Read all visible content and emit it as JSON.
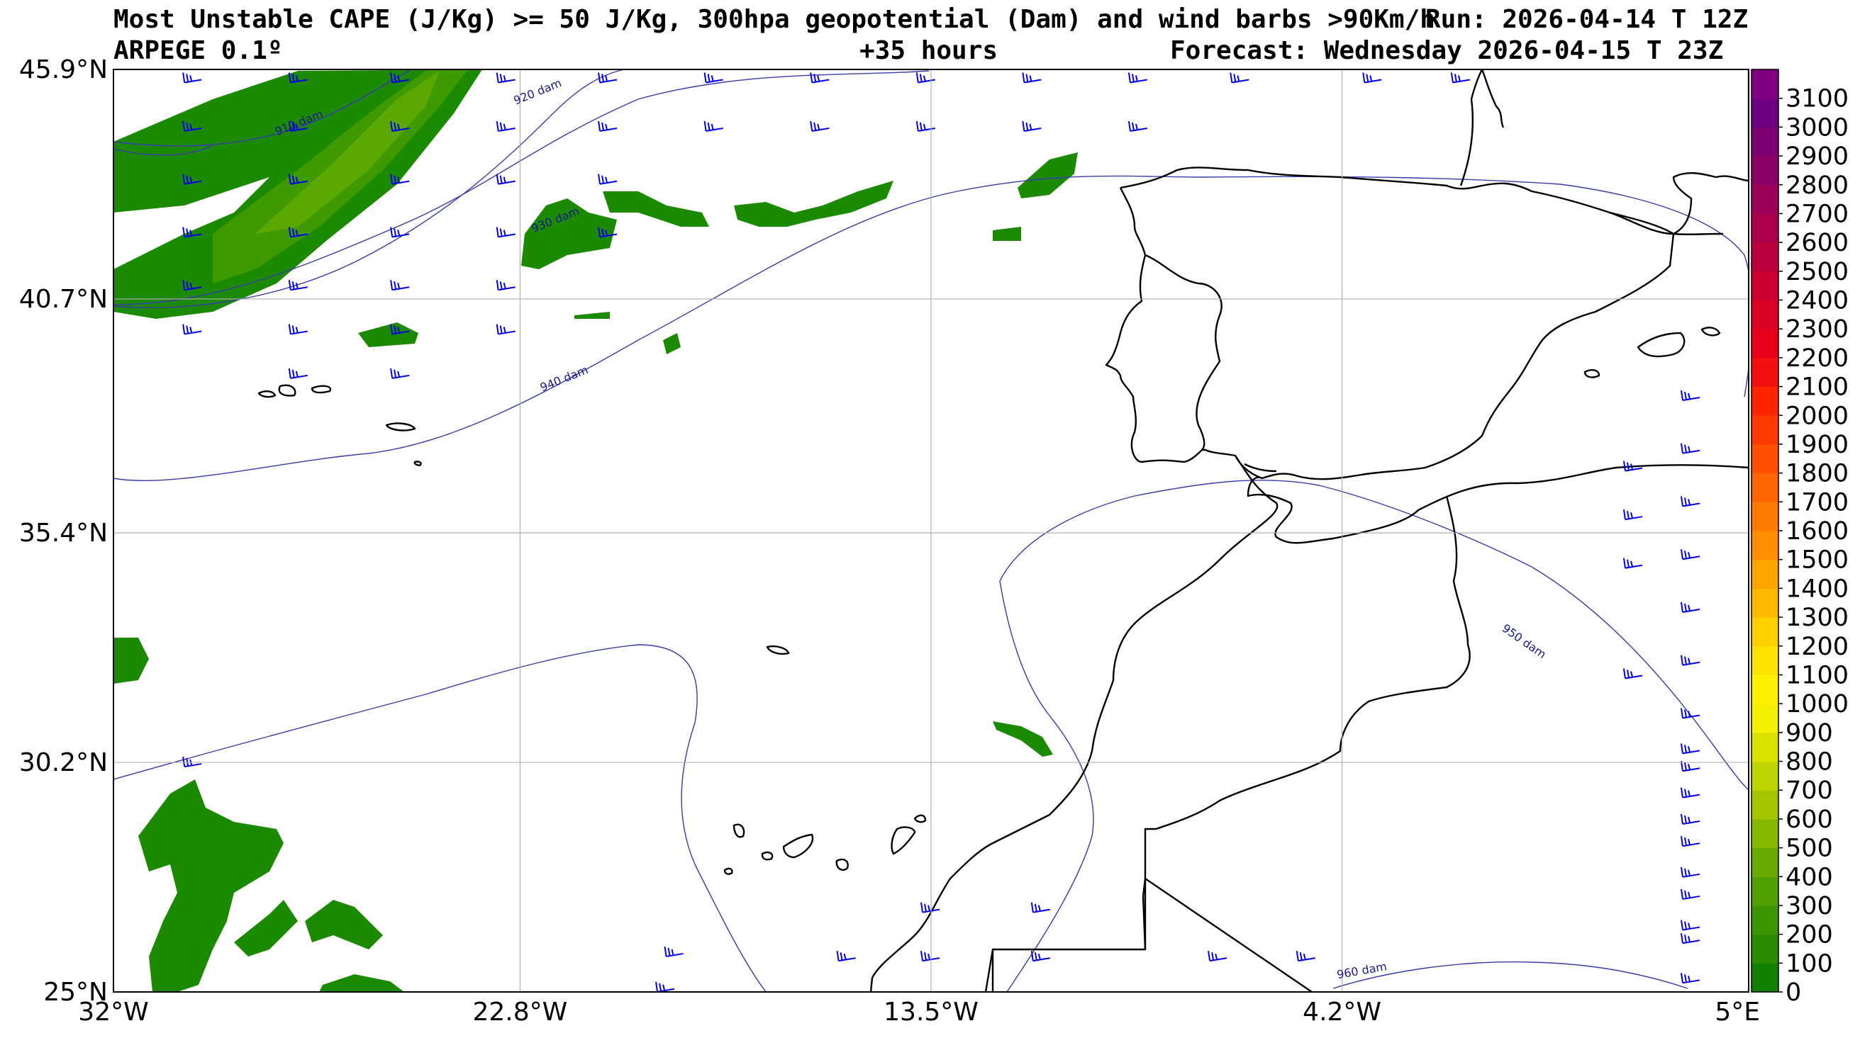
{
  "header": {
    "title_line1": "Most Unstable CAPE (J/Kg) >= 50 J/Kg, 300hpa geopotential (Dam) and wind barbs >90Km/h",
    "run": "Run: 2026-04-14 T 12Z",
    "model": "ARPEGE 0.1º",
    "lead": "+35 hours",
    "forecast": "Forecast: Wednesday 2026-04-15 T 23Z"
  },
  "map": {
    "lat_ticks": [
      {
        "value": 45.9,
        "label": "45.9°N"
      },
      {
        "value": 40.7,
        "label": "40.7°N"
      },
      {
        "value": 35.4,
        "label": "35.4°N"
      },
      {
        "value": 30.2,
        "label": "30.2°N"
      },
      {
        "value": 25.0,
        "label": "25°N"
      }
    ],
    "lon_ticks": [
      {
        "value": -32.0,
        "label": "32°W"
      },
      {
        "value": -22.8,
        "label": "22.8°W"
      },
      {
        "value": -13.5,
        "label": "13.5°W"
      },
      {
        "value": -4.2,
        "label": "4.2°W"
      },
      {
        "value": 5.0,
        "label": "5°E"
      }
    ],
    "lat_range": [
      25.0,
      45.9
    ],
    "lon_range": [
      -32.0,
      5.0
    ],
    "contour_labels": [
      {
        "text": "910 dam",
        "lon": -28.3,
        "lat": 44.4
      },
      {
        "text": "920 dam",
        "lon": -22.9,
        "lat": 45.1
      },
      {
        "text": "930 dam",
        "lon": -22.5,
        "lat": 42.2
      },
      {
        "text": "940 dam",
        "lon": -22.3,
        "lat": 38.6
      },
      {
        "text": "950 dam",
        "lon": -0.6,
        "lat": 33.2
      },
      {
        "text": "960 dam",
        "lon": -4.3,
        "lat": 25.3
      }
    ],
    "colors": {
      "coast": "#000000",
      "contour": "#3a3aa8",
      "contour_label": "#1a1a90",
      "barb": "#0000ee",
      "grid": "#b0b0b0",
      "cape_dark": "#1b8a00",
      "cape_mid": "#3f9a00",
      "cape_light": "#5aa800"
    }
  },
  "colorbar": {
    "min": 0,
    "max": 3200,
    "labels": [
      "0",
      "100",
      "200",
      "300",
      "400",
      "500",
      "600",
      "700",
      "800",
      "900",
      "1000",
      "1100",
      "1200",
      "1300",
      "1400",
      "1500",
      "1600",
      "1700",
      "1800",
      "1900",
      "2000",
      "2100",
      "2200",
      "2300",
      "2400",
      "2500",
      "2600",
      "2700",
      "2800",
      "2900",
      "3000",
      "3100"
    ],
    "colors": [
      "#137f00",
      "#2d8b00",
      "#3c9600",
      "#4fa000",
      "#68aa00",
      "#86b800",
      "#a3c600",
      "#c0d400",
      "#dbe200",
      "#f5ef00",
      "#fff200",
      "#ffe200",
      "#ffd000",
      "#ffba00",
      "#ffa400",
      "#ff8f00",
      "#ff7a00",
      "#ff6500",
      "#ff5000",
      "#ff3a00",
      "#ff2400",
      "#f40f0f",
      "#e8001a",
      "#db0024",
      "#cc0030",
      "#bc003d",
      "#ac004a",
      "#9c0058",
      "#8c0066",
      "#7c0074",
      "#6c0080",
      "#800080"
    ]
  }
}
